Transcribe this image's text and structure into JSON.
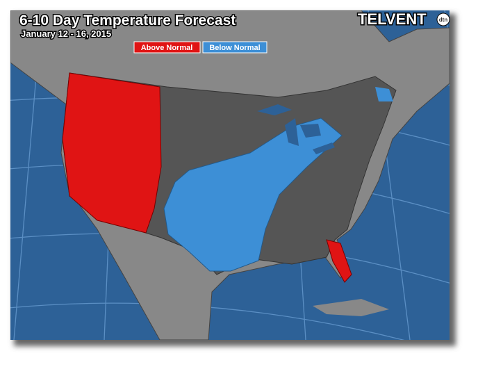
{
  "header": {
    "title": "6-10 Day Temperature Forecast",
    "subtitle": "January 12 - 16, 2015"
  },
  "legend": {
    "items": [
      "Above Normal",
      "Below Normal"
    ]
  },
  "logo": {
    "name": "TELVENT",
    "badge": "dtn"
  }
}
